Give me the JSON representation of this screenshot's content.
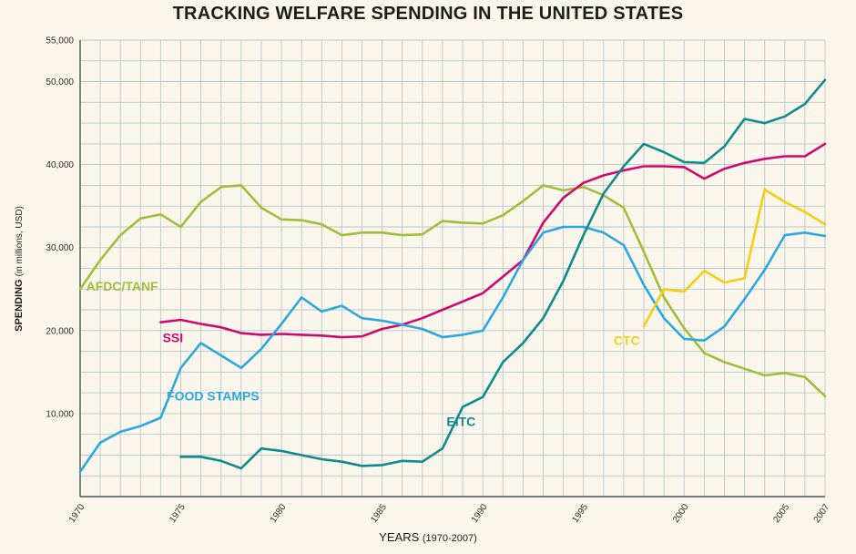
{
  "chart_data": {
    "type": "line",
    "title": "TRACKING WELFARE SPENDING IN THE UNITED STATES",
    "xlabel": "YEARS",
    "xlabel_sub": "(1970-2007)",
    "ylabel": "SPENDING",
    "ylabel_sub": "(in millions, USD)",
    "x_range": [
      1970,
      2007
    ],
    "y_range": [
      0,
      55000
    ],
    "y_grid_step": 2500,
    "grid_on": true,
    "grid_color": "#b9c7c9",
    "axis_color": "#4a5450",
    "background_color": "#fbf6ec",
    "x_ticks": [
      1970,
      1975,
      1980,
      1985,
      1990,
      1995,
      2000,
      2005,
      2007
    ],
    "y_ticks": [
      {
        "value": 55000,
        "label": "55,000"
      },
      {
        "value": 50000,
        "label": "50,000"
      },
      {
        "value": 40000,
        "label": "40,000"
      },
      {
        "value": 30000,
        "label": "30,000"
      },
      {
        "value": 20000,
        "label": "20,000"
      },
      {
        "value": 10000,
        "label": "10,000"
      }
    ],
    "series": [
      {
        "id": "afdc-tanf",
        "name": "AFDC/TANF",
        "color": "#a2bd3a",
        "start_year": 1970,
        "label_pos": {
          "x": 1970.3,
          "y": 24800
        },
        "values": [
          25000,
          28500,
          31500,
          33500,
          34000,
          32500,
          35500,
          37300,
          37500,
          34800,
          33400,
          33300,
          32800,
          31500,
          31800,
          31800,
          31500,
          31600,
          33200,
          33000,
          32900,
          33900,
          35600,
          37500,
          36900,
          37300,
          36300,
          34800,
          29500,
          24000,
          20300,
          17300,
          16200,
          15400,
          14600,
          14900,
          14400,
          12100
        ]
      },
      {
        "id": "ssi",
        "name": "SSI",
        "color": "#cf0a6e",
        "start_year": 1974,
        "label_pos": {
          "x": 1974.1,
          "y": 18600
        },
        "values": [
          21000,
          21300,
          20800,
          20400,
          19700,
          19500,
          19600,
          19500,
          19400,
          19200,
          19300,
          20200,
          20700,
          21500,
          22500,
          23500,
          24500,
          26500,
          28500,
          33000,
          36000,
          37800,
          38700,
          39300,
          39800,
          39800,
          39700,
          38300,
          39500,
          40200,
          40700,
          41000,
          41000,
          42500
        ]
      },
      {
        "id": "food-stamps",
        "name": "FOOD STAMPS",
        "color": "#2ca8df",
        "start_year": 1970,
        "label_pos": {
          "x": 1974.3,
          "y": 11600
        },
        "values": [
          3000,
          6500,
          7800,
          8500,
          9500,
          15500,
          18500,
          17000,
          15500,
          17800,
          20800,
          24000,
          22300,
          23000,
          21500,
          21200,
          20700,
          20200,
          19200,
          19500,
          20000,
          24000,
          28500,
          31800,
          32500,
          32500,
          31800,
          30300,
          25500,
          21500,
          19000,
          18800,
          20500,
          23800,
          27300,
          31500,
          31800,
          31400
        ]
      },
      {
        "id": "eitc",
        "name": "EITC",
        "color": "#0f8b8d",
        "start_year": 1975,
        "label_pos": {
          "x": 1988.2,
          "y": 8500
        },
        "values": [
          4800,
          4800,
          4300,
          3400,
          5800,
          5500,
          5000,
          4500,
          4200,
          3700,
          3800,
          4300,
          4200,
          5800,
          10800,
          12000,
          16200,
          18500,
          21500,
          26000,
          31500,
          36500,
          39800,
          42500,
          41500,
          40300,
          40200,
          42200,
          45500,
          45000,
          45800,
          47300,
          50200
        ]
      },
      {
        "id": "ctc",
        "name": "CTC",
        "color": "#f2cf13",
        "start_year": 1998,
        "label_pos": {
          "x": 1996.5,
          "y": 18300
        },
        "values": [
          20500,
          25000,
          24700,
          27200,
          25800,
          26300,
          37000,
          35500,
          34300,
          32800
        ]
      }
    ]
  }
}
